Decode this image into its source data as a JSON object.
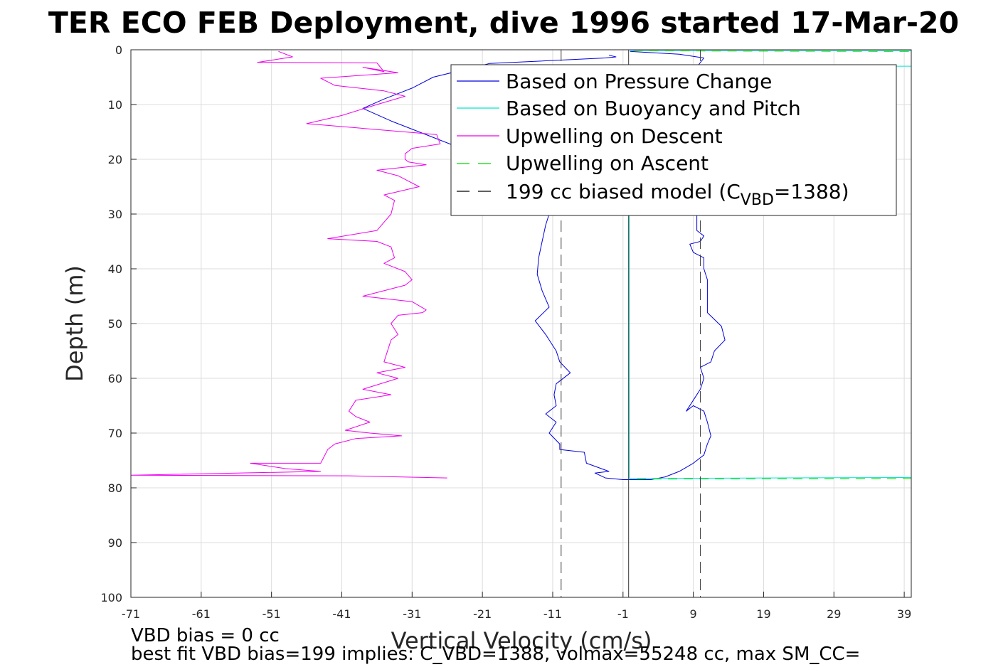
{
  "chart_data": {
    "type": "line",
    "title": "TER ECO FEB Deployment, dive 1996 started 17-Mar-20",
    "xlabel": "Vertical Velocity (cm/s)",
    "ylabel": "Depth (m)",
    "xlim": [
      -71,
      40
    ],
    "ylim": [
      0,
      100
    ],
    "y_reversed": true,
    "grid": true,
    "xticks": [
      -71,
      -61,
      -51,
      -41,
      -31,
      -21,
      -11,
      -1,
      9,
      19,
      29,
      39
    ],
    "yticks": [
      0,
      10,
      20,
      30,
      40,
      50,
      60,
      70,
      80,
      90,
      100
    ],
    "legend": {
      "placement": "top-right",
      "entries": [
        {
          "text": "Based on Pressure Change",
          "color": "#0000dd",
          "style": "solid"
        },
        {
          "text": "Based on Buoyancy and Pitch",
          "color": "#00e5d0",
          "style": "solid"
        },
        {
          "text": "Upwelling on Descent",
          "color": "#ee00ee",
          "style": "solid"
        },
        {
          "text": "Upwelling on Ascent",
          "color": "#00dd00",
          "style": "dashed"
        },
        {
          "text_main": "199 cc biased model (C",
          "text_sub": "VBD",
          "text_tail": "=1388)",
          "color": "#000000",
          "style": "dashed"
        }
      ]
    },
    "footer": [
      "VBD bias = 0 cc",
      "best fit VBD bias=199 implies: C_VBD=1388, volmax=55248 cc, max SM_CC="
    ],
    "series": [
      {
        "name": "Based on Pressure Change",
        "color": "#0000dd",
        "dash": "",
        "points": [
          [
            -3,
            1
          ],
          [
            -2,
            1.3
          ],
          [
            -3.5,
            1.5
          ],
          [
            -20,
            2.5
          ],
          [
            -28,
            5
          ],
          [
            -31,
            7
          ],
          [
            -35,
            9
          ],
          [
            -38,
            10.7
          ],
          [
            -34,
            13
          ],
          [
            -30,
            15
          ],
          [
            -25,
            17.5
          ],
          [
            -20,
            19
          ],
          [
            -16,
            22
          ],
          [
            -13,
            25
          ],
          [
            -12,
            28
          ],
          [
            -11.5,
            30
          ],
          [
            -12,
            32
          ],
          [
            -12.5,
            35
          ],
          [
            -13,
            38
          ],
          [
            -13.2,
            41
          ],
          [
            -12.5,
            44
          ],
          [
            -11.5,
            47
          ],
          [
            -13.5,
            49.5
          ],
          [
            -12,
            52
          ],
          [
            -10.5,
            55
          ],
          [
            -10,
            57
          ],
          [
            -8.5,
            59
          ],
          [
            -10.5,
            61
          ],
          [
            -10.8,
            63
          ],
          [
            -10.5,
            65
          ],
          [
            -12,
            66.5
          ],
          [
            -10.5,
            68
          ],
          [
            -11.5,
            70
          ],
          [
            -10,
            72
          ],
          [
            -10,
            73
          ],
          [
            -6.5,
            73.5
          ],
          [
            -6.2,
            75.5
          ],
          [
            -3,
            77
          ],
          [
            -5,
            77.3
          ],
          [
            -3.5,
            78.2
          ],
          [
            -1,
            78.5
          ],
          [
            3,
            78.5
          ],
          [
            5,
            78
          ],
          [
            7,
            77
          ],
          [
            9,
            75.5
          ],
          [
            10.5,
            74
          ],
          [
            11,
            72
          ],
          [
            11.5,
            70.5
          ],
          [
            11,
            68
          ],
          [
            10.5,
            66
          ],
          [
            9,
            65
          ],
          [
            8,
            66
          ],
          [
            9,
            64
          ],
          [
            10,
            62
          ],
          [
            10.5,
            60
          ],
          [
            10,
            58
          ],
          [
            11.5,
            57
          ],
          [
            12,
            55
          ],
          [
            13.5,
            53
          ],
          [
            13,
            50.5
          ],
          [
            11,
            48
          ],
          [
            11,
            46
          ],
          [
            11,
            44
          ],
          [
            11,
            42
          ],
          [
            10.5,
            40
          ],
          [
            10.5,
            38
          ],
          [
            9,
            37
          ],
          [
            8.5,
            35.5
          ],
          [
            10,
            35
          ],
          [
            10.5,
            34
          ],
          [
            9.5,
            33
          ],
          [
            9.5,
            31
          ],
          [
            9.5,
            29
          ],
          [
            9,
            27
          ],
          [
            9,
            25
          ],
          [
            9,
            23
          ],
          [
            9,
            21
          ],
          [
            9,
            19
          ],
          [
            9,
            17
          ],
          [
            9,
            15
          ],
          [
            9,
            13
          ],
          [
            9,
            11
          ],
          [
            9,
            9
          ],
          [
            9,
            7
          ],
          [
            9,
            5
          ],
          [
            9,
            4
          ],
          [
            10.5,
            1.5
          ],
          [
            7,
            0.8
          ],
          [
            0,
            0.3
          ]
        ]
      },
      {
        "name": "Based on Buoyancy and Pitch",
        "color": "#00e5d0",
        "dash": "",
        "points": [
          [
            0,
            0.2
          ],
          [
            41,
            0.2
          ],
          [
            41,
            3
          ],
          [
            0,
            3.1
          ],
          [
            -0.1,
            5
          ],
          [
            -0.1,
            20
          ],
          [
            -0.1,
            40
          ],
          [
            -0.1,
            60
          ],
          [
            -0.1,
            78.3
          ],
          [
            41,
            78.1
          ]
        ]
      },
      {
        "name": "Upwelling on Descent",
        "color": "#ee00ee",
        "dash": "",
        "points": [
          [
            -50,
            0.3
          ],
          [
            -48,
            1.3
          ],
          [
            -53,
            2.3
          ],
          [
            -36,
            2.4
          ],
          [
            -35,
            4
          ],
          [
            -38,
            3.2
          ],
          [
            -33,
            4.2
          ],
          [
            -44,
            5.2
          ],
          [
            -42,
            6.5
          ],
          [
            -35,
            7.5
          ],
          [
            -32,
            8.5
          ],
          [
            -36,
            10
          ],
          [
            -41,
            12
          ],
          [
            -46,
            13.5
          ],
          [
            -32,
            15
          ],
          [
            -27.5,
            15.5
          ],
          [
            -27,
            17.2
          ],
          [
            -31,
            18
          ],
          [
            -32,
            19
          ],
          [
            -32,
            20
          ],
          [
            -31.5,
            20.5
          ],
          [
            -29,
            21
          ],
          [
            -36,
            22
          ],
          [
            -33,
            23
          ],
          [
            -30,
            25
          ],
          [
            -35,
            26.5
          ],
          [
            -33.5,
            27.5
          ],
          [
            -34,
            30
          ],
          [
            -35,
            31.5
          ],
          [
            -36,
            33
          ],
          [
            -43,
            34.5
          ],
          [
            -36,
            35
          ],
          [
            -34,
            36
          ],
          [
            -33.5,
            38
          ],
          [
            -35,
            39
          ],
          [
            -32,
            40.5
          ],
          [
            -31,
            42
          ],
          [
            -32,
            43
          ],
          [
            -38,
            45
          ],
          [
            -31,
            46
          ],
          [
            -29,
            47.5
          ],
          [
            -29.5,
            48
          ],
          [
            -33,
            48.5
          ],
          [
            -34,
            50
          ],
          [
            -33,
            52
          ],
          [
            -34,
            53
          ],
          [
            -35,
            57
          ],
          [
            -32,
            58
          ],
          [
            -36,
            59
          ],
          [
            -33,
            60
          ],
          [
            -38,
            62
          ],
          [
            -34,
            63
          ],
          [
            -39,
            64
          ],
          [
            -40,
            66
          ],
          [
            -39,
            67
          ],
          [
            -37,
            68
          ],
          [
            -40.5,
            69.5
          ],
          [
            -37,
            70
          ],
          [
            -32.5,
            70.5
          ],
          [
            -39,
            71
          ],
          [
            -42,
            72
          ],
          [
            -43,
            73
          ],
          [
            -44,
            75.5
          ],
          [
            -54,
            75.5
          ],
          [
            -49,
            76.5
          ],
          [
            -44,
            77
          ],
          [
            -72,
            77.7
          ],
          [
            -40,
            77.8
          ],
          [
            -26,
            78.2
          ]
        ]
      },
      {
        "name": "Upwelling on Ascent",
        "color": "#00dd00",
        "dash": "13,9",
        "points": [
          [
            0.5,
            0.2
          ],
          [
            41,
            0.3
          ],
          [
            41,
            3
          ],
          [
            41,
            3.2
          ],
          [
            41,
            4
          ],
          [
            41,
            4.5
          ],
          [
            41,
            13.5
          ],
          [
            41,
            17.2
          ],
          [
            41,
            20.5
          ],
          [
            41,
            48
          ],
          [
            41,
            78.3
          ],
          [
            0.5,
            78.4
          ]
        ]
      },
      {
        "name": "199 cc biased model",
        "color": "#444444",
        "dash": "16,8",
        "points": [
          [
            -9.8,
            0
          ],
          [
            -9.8,
            100
          ]
        ]
      },
      {
        "name": "",
        "color": "#444444",
        "dash": "16,8",
        "points": [
          [
            10,
            0
          ],
          [
            10,
            100
          ]
        ]
      },
      {
        "name": "",
        "color": "#333333",
        "dash": "",
        "points": [
          [
            -0.2,
            0
          ],
          [
            -0.2,
            100
          ]
        ]
      }
    ]
  }
}
